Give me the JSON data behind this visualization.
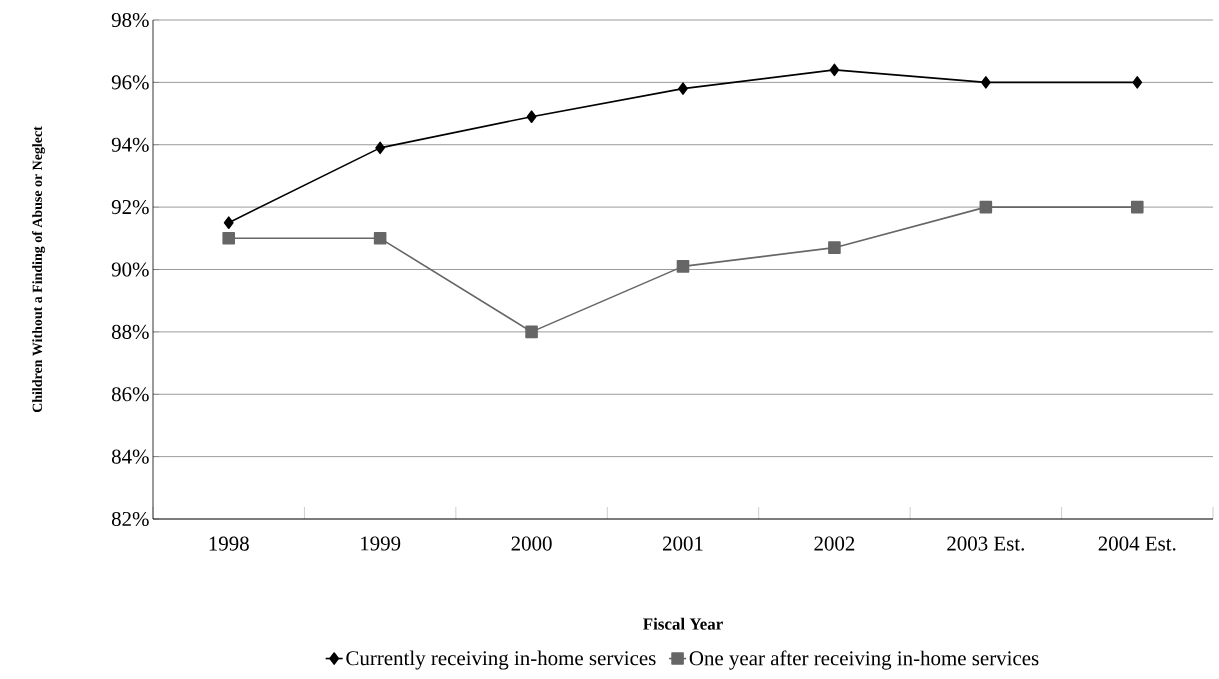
{
  "chart_data": {
    "type": "line",
    "xlabel": "Fiscal Year",
    "ylabel": "Children Without a Finding of Abuse or Neglect",
    "categories": [
      "1998",
      "1999",
      "2000",
      "2001",
      "2002",
      "2003 Est.",
      "2004 Est."
    ],
    "series": [
      {
        "name": "Currently receiving in-home services",
        "color": "#000000",
        "marker": "diamond",
        "values": [
          91.5,
          93.9,
          94.9,
          95.8,
          96.4,
          96.0,
          96.0
        ]
      },
      {
        "name": "One year after receiving in-home services",
        "color": "#666666",
        "marker": "square",
        "values": [
          91.0,
          91.0,
          88.0,
          90.1,
          90.7,
          92.0,
          92.0
        ]
      }
    ],
    "ylim": [
      82,
      98
    ],
    "yticks": [
      {
        "value": 82,
        "label": "82%"
      },
      {
        "value": 84,
        "label": "84%"
      },
      {
        "value": 86,
        "label": "86%"
      },
      {
        "value": 88,
        "label": "88%"
      },
      {
        "value": 90,
        "label": "90%"
      },
      {
        "value": 92,
        "label": "92%"
      },
      {
        "value": 94,
        "label": "94%"
      },
      {
        "value": 96,
        "label": "96%"
      },
      {
        "value": 98,
        "label": "98%"
      }
    ],
    "grid": "y",
    "legend": "bottom",
    "line_style": "solid"
  }
}
